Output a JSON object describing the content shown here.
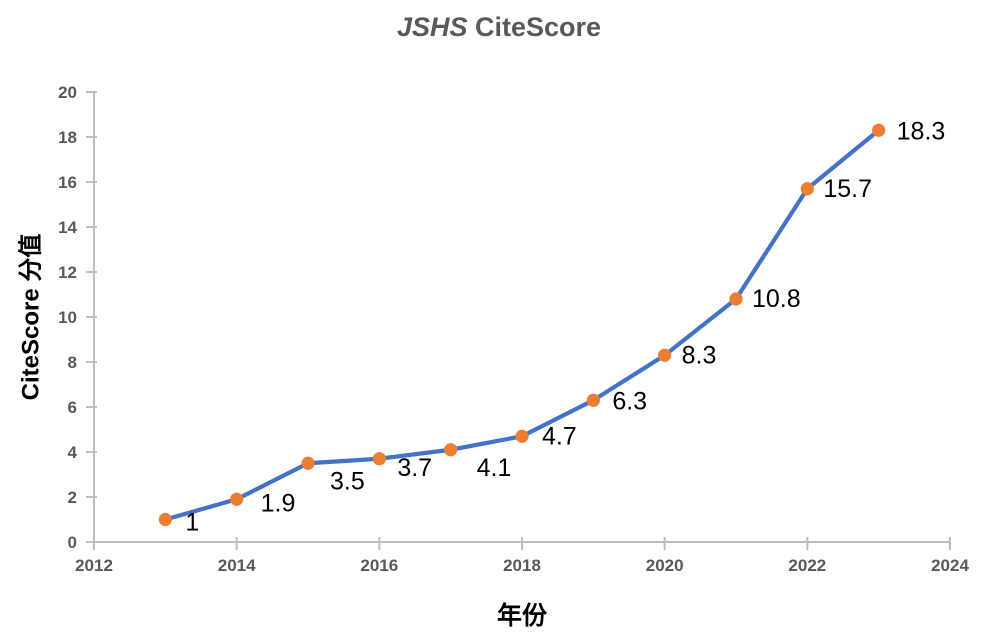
{
  "chart_data": {
    "type": "line",
    "title_italic": "JSHS",
    "title_rest": " CiteScore",
    "xlabel": "年份",
    "ylabel": "CiteScore 分值",
    "x": [
      2013,
      2014,
      2015,
      2016,
      2017,
      2018,
      2019,
      2020,
      2021,
      2022,
      2023
    ],
    "values": [
      1,
      1.9,
      3.5,
      3.7,
      4.1,
      4.7,
      6.3,
      8.3,
      10.8,
      15.7,
      18.3
    ],
    "data_labels": [
      "1",
      "1.9",
      "3.5",
      "3.7",
      "4.1",
      "4.7",
      "6.3",
      "8.3",
      "10.8",
      "15.7",
      "18.3"
    ],
    "xlim": [
      2012,
      2024
    ],
    "ylim": [
      0,
      20
    ],
    "x_ticks": [
      "2012",
      "2014",
      "2016",
      "2018",
      "2020",
      "2022",
      "2024"
    ],
    "y_ticks": [
      "0",
      "2",
      "4",
      "6",
      "8",
      "10",
      "12",
      "14",
      "16",
      "18",
      "20"
    ],
    "grid": false,
    "legend": "none",
    "colors": {
      "line": "#4472C4",
      "marker": "#ED7D31",
      "axis": "#BFBFBF",
      "tick_label": "#595959",
      "title": "#595959",
      "data_label": "#000000",
      "axis_title": "#000000",
      "background": "#FFFFFF"
    }
  }
}
